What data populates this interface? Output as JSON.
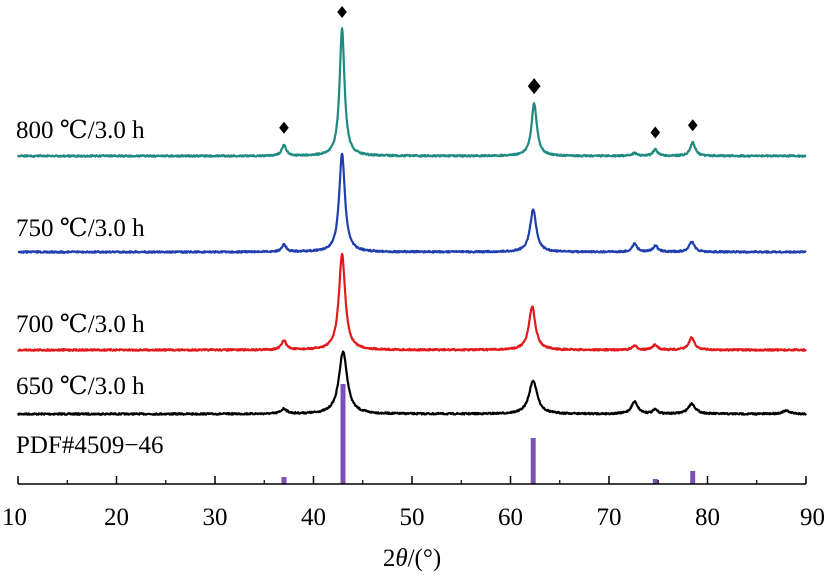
{
  "chart_data": {
    "type": "line",
    "x_axis": {
      "label_prefix": "2",
      "label_italic": "θ",
      "label_suffix": "/(°)",
      "range": [
        10,
        90
      ],
      "ticks": [
        10,
        20,
        30,
        40,
        50,
        60,
        70,
        80,
        90
      ],
      "tick_labels": [
        "10",
        "20",
        "30",
        "40",
        "50",
        "60",
        "70",
        "80",
        "90"
      ]
    },
    "y_axis": {
      "shown": false
    },
    "grid": false,
    "series": [
      {
        "name": "650 ℃/3.0 h",
        "color": "#000000",
        "peaks": [
          {
            "x": 37.0,
            "h": 0.05,
            "w": 0.35
          },
          {
            "x": 43.0,
            "h": 0.62,
            "w": 0.5
          },
          {
            "x": 62.3,
            "h": 0.33,
            "w": 0.5
          },
          {
            "x": 72.6,
            "h": 0.12,
            "w": 0.4
          },
          {
            "x": 74.7,
            "h": 0.04,
            "w": 0.3
          },
          {
            "x": 78.4,
            "h": 0.1,
            "w": 0.45
          },
          {
            "x": 88.0,
            "h": 0.03,
            "w": 0.5
          }
        ]
      },
      {
        "name": "700 ℃/3.0 h",
        "color": "#e31a1c",
        "peaks": [
          {
            "x": 37.0,
            "h": 0.09,
            "w": 0.3
          },
          {
            "x": 42.9,
            "h": 0.95,
            "w": 0.38
          },
          {
            "x": 62.2,
            "h": 0.43,
            "w": 0.4
          },
          {
            "x": 72.6,
            "h": 0.04,
            "w": 0.3
          },
          {
            "x": 74.7,
            "h": 0.05,
            "w": 0.3
          },
          {
            "x": 78.4,
            "h": 0.12,
            "w": 0.35
          }
        ]
      },
      {
        "name": "750 ℃/3.0 h",
        "color": "#1f3fae",
        "peaks": [
          {
            "x": 37.0,
            "h": 0.07,
            "w": 0.28
          },
          {
            "x": 42.9,
            "h": 0.97,
            "w": 0.35
          },
          {
            "x": 62.3,
            "h": 0.42,
            "w": 0.38
          },
          {
            "x": 72.6,
            "h": 0.08,
            "w": 0.3
          },
          {
            "x": 74.7,
            "h": 0.06,
            "w": 0.3
          },
          {
            "x": 78.4,
            "h": 0.1,
            "w": 0.33
          }
        ]
      },
      {
        "name": "800 ℃/3.0 h",
        "color": "#1e8a80",
        "peaks": [
          {
            "x": 37.0,
            "h": 0.12,
            "w": 0.27
          },
          {
            "x": 42.9,
            "h": 1.4,
            "w": 0.3
          },
          {
            "x": 62.4,
            "h": 0.58,
            "w": 0.33
          },
          {
            "x": 72.6,
            "h": 0.03,
            "w": 0.3
          },
          {
            "x": 74.7,
            "h": 0.07,
            "w": 0.28
          },
          {
            "x": 78.5,
            "h": 0.15,
            "w": 0.3
          }
        ]
      }
    ],
    "reference": {
      "name": "PDF#4509−46",
      "color": "#7b52b8",
      "lines": [
        {
          "x": 37.0,
          "intensity": 0.07
        },
        {
          "x": 43.0,
          "intensity": 1.0
        },
        {
          "x": 62.3,
          "intensity": 0.46
        },
        {
          "x": 74.7,
          "intensity": 0.05
        },
        {
          "x": 78.5,
          "intensity": 0.13
        }
      ]
    },
    "markers": {
      "symbol": "◆",
      "series": "800 ℃/3.0 h",
      "x": [
        37.0,
        42.9,
        62.4,
        74.7,
        78.5
      ]
    }
  }
}
